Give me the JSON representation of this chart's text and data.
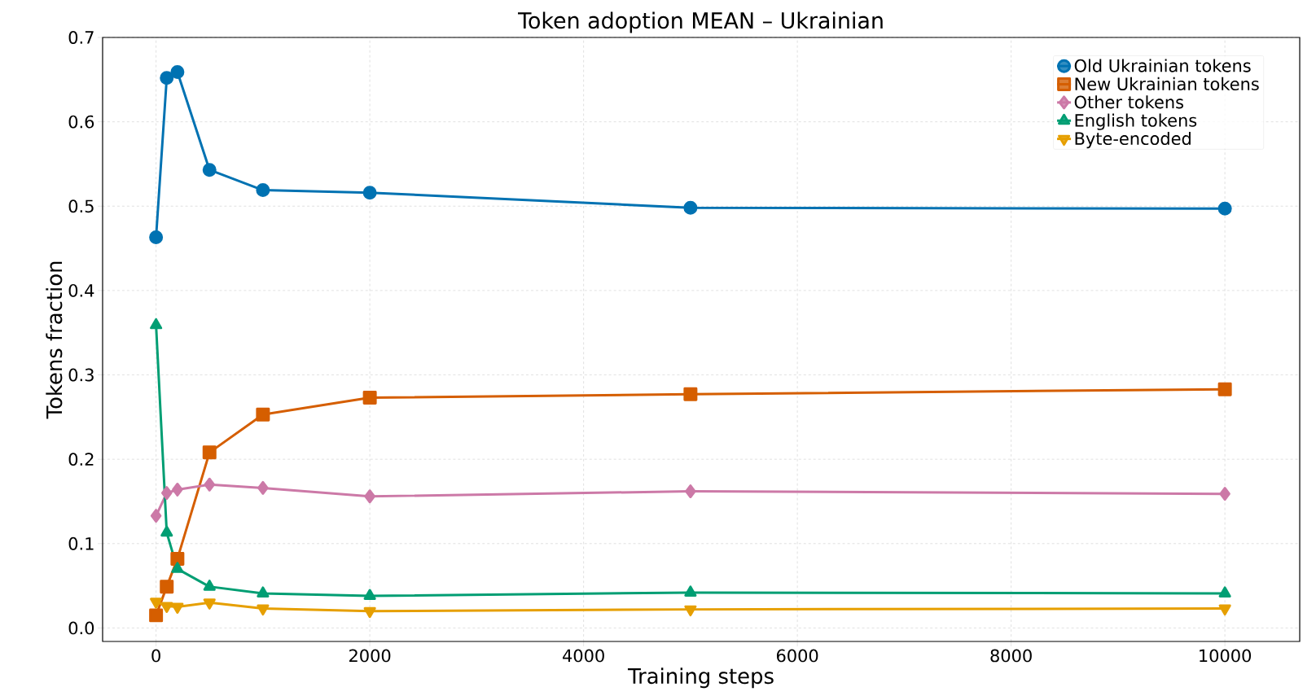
{
  "chart_data": {
    "type": "line",
    "title": "Token adoption MEAN – Ukrainian",
    "xlabel": "Training steps",
    "ylabel": "Tokens fraction",
    "x": [
      0,
      100,
      200,
      500,
      1000,
      2000,
      5000,
      10000
    ],
    "series": [
      {
        "name": "Old Ukrainian tokens",
        "color": "#0072b2",
        "marker": "circle",
        "values": [
          0.463,
          0.652,
          0.659,
          0.543,
          0.519,
          0.516,
          0.498,
          0.497
        ]
      },
      {
        "name": "New Ukrainian tokens",
        "color": "#d55e00",
        "marker": "square",
        "values": [
          0.015,
          0.049,
          0.082,
          0.208,
          0.253,
          0.273,
          0.277,
          0.283
        ]
      },
      {
        "name": "Other tokens",
        "color": "#cc79a7",
        "marker": "diamond",
        "values": [
          0.133,
          0.16,
          0.164,
          0.17,
          0.166,
          0.156,
          0.162,
          0.159
        ]
      },
      {
        "name": "English tokens",
        "color": "#009e73",
        "marker": "triangle",
        "values": [
          0.359,
          0.113,
          0.07,
          0.049,
          0.041,
          0.038,
          0.042,
          0.041
        ]
      },
      {
        "name": "Byte-encoded",
        "color": "#e69f00",
        "marker": "triangle-down",
        "values": [
          0.031,
          0.026,
          0.025,
          0.03,
          0.023,
          0.02,
          0.022,
          0.023
        ]
      }
    ],
    "xlim": [
      -500,
      10700
    ],
    "ylim": [
      -0.016,
      0.7
    ],
    "xticks": [
      0,
      2000,
      4000,
      6000,
      8000,
      10000
    ],
    "yticks": [
      {
        "value": 0,
        "label": "0.0"
      },
      {
        "value": 0.1,
        "label": "0.1"
      },
      {
        "value": 0.2,
        "label": "0.2"
      },
      {
        "value": 0.3,
        "label": "0.3"
      },
      {
        "value": 0.4,
        "label": "0.4"
      },
      {
        "value": 0.5,
        "label": "0.5"
      },
      {
        "value": 0.6,
        "label": "0.6"
      },
      {
        "value": 0.7,
        "label": "0.7"
      }
    ],
    "grid": true,
    "legend": "top right",
    "line_style": "solid"
  }
}
